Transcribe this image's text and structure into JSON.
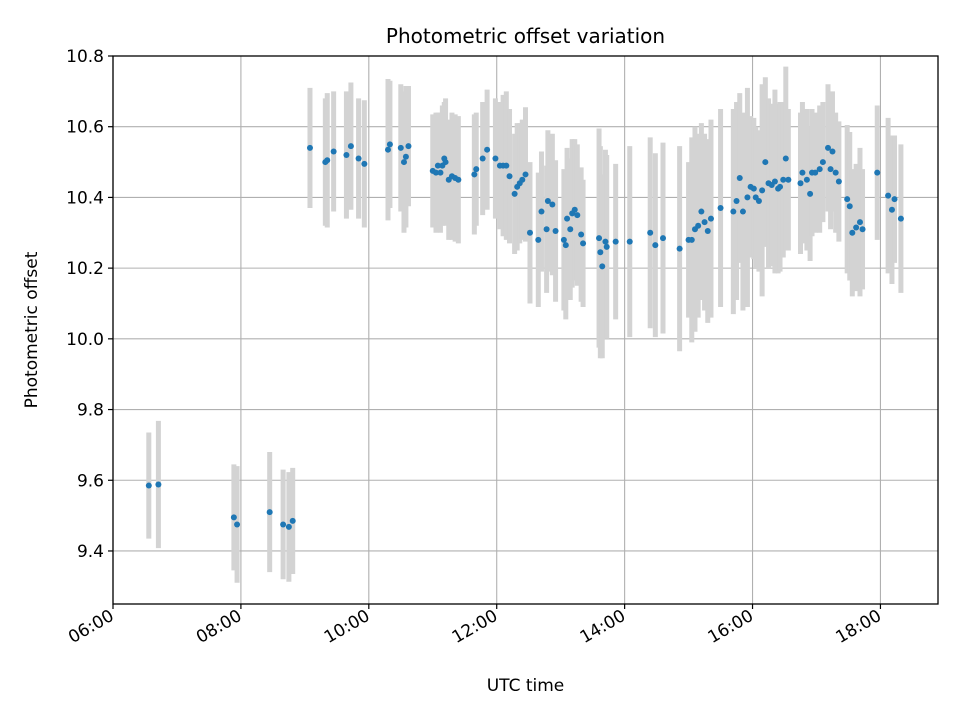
{
  "chart_data": {
    "type": "scatter",
    "title": "Photometric offset variation",
    "xlabel": "UTC time",
    "ylabel": "Photometric offset",
    "x_unit": "hours UTC",
    "xlim": [
      6.0,
      18.9
    ],
    "ylim": [
      9.25,
      10.8
    ],
    "x_ticks": [
      6,
      8,
      10,
      12,
      14,
      16,
      18
    ],
    "x_tick_labels": [
      "06:00",
      "08:00",
      "10:00",
      "12:00",
      "14:00",
      "16:00",
      "18:00"
    ],
    "y_ticks": [
      9.4,
      9.6,
      9.8,
      10.0,
      10.2,
      10.4,
      10.6,
      10.8
    ],
    "y_tick_labels": [
      "9.4",
      "9.6",
      "9.8",
      "10.0",
      "10.2",
      "10.4",
      "10.6",
      "10.8"
    ],
    "grid": true,
    "colors": {
      "point": "#1f77b4",
      "errorbar": "#d3d3d3",
      "grid": "#b0b0b0"
    },
    "series": [
      {
        "x": [
          6.56,
          6.71,
          7.89,
          7.94,
          8.45,
          8.66,
          8.75,
          8.81,
          9.08,
          9.32,
          9.35,
          9.45,
          9.65,
          9.72,
          9.84,
          9.93,
          10.3,
          10.33,
          10.5,
          10.55,
          10.58,
          10.62,
          11.0,
          11.05,
          11.08,
          11.12,
          11.15,
          11.18,
          11.2,
          11.25,
          11.3,
          11.35,
          11.4,
          11.65,
          11.68,
          11.78,
          11.85,
          11.98,
          12.05,
          12.1,
          12.15,
          12.2,
          12.28,
          12.32,
          12.36,
          12.4,
          12.45,
          12.52,
          12.65,
          12.7,
          12.78,
          12.8,
          12.87,
          12.92,
          13.05,
          13.08,
          13.1,
          13.15,
          13.18,
          13.22,
          13.26,
          13.32,
          13.35,
          13.6,
          13.62,
          13.65,
          13.7,
          13.72,
          13.86,
          14.08,
          14.4,
          14.48,
          14.6,
          14.86,
          15.0,
          15.05,
          15.1,
          15.15,
          15.2,
          15.25,
          15.3,
          15.35,
          15.5,
          15.7,
          15.75,
          15.8,
          15.85,
          15.92,
          15.97,
          16.02,
          16.05,
          16.1,
          16.15,
          16.2,
          16.25,
          16.3,
          16.35,
          16.4,
          16.43,
          16.48,
          16.52,
          16.56,
          16.75,
          16.78,
          16.85,
          16.9,
          16.93,
          16.98,
          17.05,
          17.1,
          17.18,
          17.22,
          17.25,
          17.3,
          17.35,
          17.48,
          17.52,
          17.56,
          17.62,
          17.68,
          17.72,
          17.95,
          18.12,
          18.18,
          18.22,
          18.32
        ],
        "y": [
          9.585,
          9.588,
          9.495,
          9.475,
          9.51,
          9.475,
          9.468,
          9.485,
          10.54,
          10.5,
          10.505,
          10.53,
          10.52,
          10.545,
          10.51,
          10.495,
          10.535,
          10.55,
          10.54,
          10.5,
          10.515,
          10.545,
          10.475,
          10.47,
          10.49,
          10.47,
          10.49,
          10.51,
          10.5,
          10.45,
          10.46,
          10.455,
          10.45,
          10.465,
          10.48,
          10.51,
          10.535,
          10.51,
          10.49,
          10.49,
          10.49,
          10.46,
          10.41,
          10.43,
          10.44,
          10.45,
          10.465,
          10.3,
          10.28,
          10.36,
          10.31,
          10.39,
          10.38,
          10.305,
          10.28,
          10.265,
          10.34,
          10.31,
          10.355,
          10.365,
          10.35,
          10.295,
          10.27,
          10.285,
          10.245,
          10.205,
          10.275,
          10.26,
          10.275,
          10.275,
          10.3,
          10.265,
          10.285,
          10.255,
          10.28,
          10.28,
          10.31,
          10.32,
          10.36,
          10.33,
          10.305,
          10.34,
          10.37,
          10.36,
          10.39,
          10.455,
          10.36,
          10.4,
          10.43,
          10.425,
          10.4,
          10.39,
          10.42,
          10.5,
          10.44,
          10.435,
          10.445,
          10.425,
          10.43,
          10.45,
          10.51,
          10.45,
          10.44,
          10.47,
          10.45,
          10.41,
          10.47,
          10.47,
          10.48,
          10.5,
          10.54,
          10.48,
          10.53,
          10.47,
          10.445,
          10.395,
          10.375,
          10.3,
          10.315,
          10.33,
          10.31,
          10.47,
          10.405,
          10.365,
          10.395,
          10.34
        ],
        "err": [
          0.15,
          0.18,
          0.15,
          0.165,
          0.17,
          0.155,
          0.155,
          0.15,
          0.17,
          0.18,
          0.19,
          0.17,
          0.18,
          0.18,
          0.17,
          0.18,
          0.2,
          0.18,
          0.18,
          0.2,
          0.2,
          0.17,
          0.16,
          0.17,
          0.15,
          0.17,
          0.17,
          0.16,
          0.18,
          0.17,
          0.18,
          0.18,
          0.18,
          0.17,
          0.16,
          0.16,
          0.17,
          0.17,
          0.18,
          0.2,
          0.21,
          0.19,
          0.17,
          0.18,
          0.17,
          0.17,
          0.19,
          0.2,
          0.19,
          0.17,
          0.18,
          0.2,
          0.2,
          0.2,
          0.2,
          0.21,
          0.2,
          0.2,
          0.21,
          0.2,
          0.2,
          0.19,
          0.18,
          0.31,
          0.3,
          0.26,
          0.26,
          0.26,
          0.22,
          0.27,
          0.27,
          0.26,
          0.27,
          0.29,
          0.22,
          0.29,
          0.29,
          0.26,
          0.25,
          0.25,
          0.26,
          0.28,
          0.28,
          0.29,
          0.28,
          0.24,
          0.28,
          0.31,
          0.2,
          0.2,
          0.2,
          0.2,
          0.3,
          0.24,
          0.24,
          0.23,
          0.26,
          0.24,
          0.24,
          0.22,
          0.26,
          0.2,
          0.2,
          0.2,
          0.2,
          0.19,
          0.18,
          0.17,
          0.18,
          0.17,
          0.18,
          0.17,
          0.17,
          0.17,
          0.17,
          0.21,
          0.21,
          0.18,
          0.18,
          0.21,
          0.17,
          0.19,
          0.22,
          0.21,
          0.18,
          0.21
        ]
      }
    ]
  }
}
